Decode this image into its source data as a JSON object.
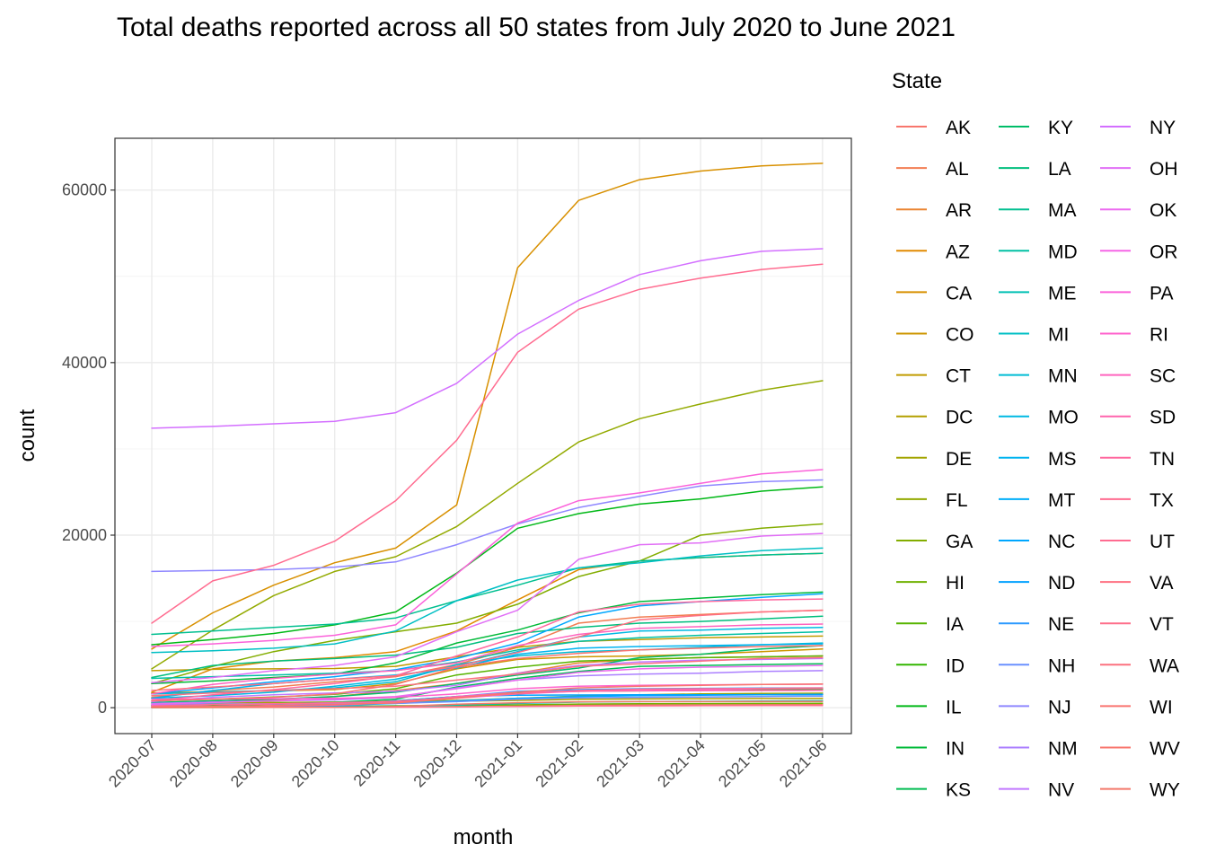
{
  "chart_data": {
    "type": "line",
    "title": "Total deaths reported across all 50 states from July 2020 to June 2021",
    "xlabel": "month",
    "ylabel": "count",
    "legend_title": "State",
    "legend_position": "right",
    "grid": true,
    "ylim": [
      -3000,
      66000
    ],
    "y_ticks": [
      0,
      20000,
      40000,
      60000
    ],
    "x": [
      "2020-07",
      "2020-08",
      "2020-09",
      "2020-10",
      "2020-11",
      "2020-12",
      "2021-01",
      "2021-02",
      "2021-03",
      "2021-04",
      "2021-05",
      "2021-06"
    ],
    "series": [
      {
        "name": "AK",
        "color": "#F8766D",
        "values": [
          30,
          50,
          80,
          100,
          180,
          250,
          300,
          320,
          330,
          340,
          350,
          360
        ]
      },
      {
        "name": "AL",
        "color": "#F27D52",
        "values": [
          1200,
          2000,
          2400,
          3000,
          3600,
          5000,
          7000,
          9800,
          10500,
          10800,
          11100,
          11300
        ]
      },
      {
        "name": "AR",
        "color": "#EA8331",
        "values": [
          300,
          600,
          900,
          1300,
          2000,
          2800,
          4000,
          5200,
          5600,
          5800,
          5900,
          6000
        ]
      },
      {
        "name": "AZ",
        "color": "#E18A00",
        "values": [
          1800,
          4500,
          5400,
          5800,
          6500,
          8900,
          12500,
          16000,
          17000,
          17400,
          17700,
          17900
        ]
      },
      {
        "name": "CA",
        "color": "#D89000",
        "values": [
          6800,
          11000,
          14200,
          16800,
          18500,
          23500,
          51000,
          58800,
          61200,
          62200,
          62800,
          63100
        ]
      },
      {
        "name": "CO",
        "color": "#CD9600",
        "values": [
          1700,
          1850,
          1950,
          2100,
          2800,
          4500,
          5600,
          5900,
          6000,
          6200,
          6500,
          6800
        ]
      },
      {
        "name": "CT",
        "color": "#C09B00",
        "values": [
          4300,
          4450,
          4500,
          4550,
          4800,
          5900,
          7000,
          7700,
          7900,
          8100,
          8200,
          8300
        ]
      },
      {
        "name": "DC",
        "color": "#B3A000",
        "values": [
          550,
          580,
          600,
          630,
          660,
          750,
          850,
          980,
          1020,
          1050,
          1070,
          1080
        ]
      },
      {
        "name": "DE",
        "color": "#A3A500",
        "values": [
          520,
          580,
          600,
          650,
          700,
          850,
          1100,
          1350,
          1500,
          1600,
          1650,
          1680
        ]
      },
      {
        "name": "FL",
        "color": "#93AA00",
        "values": [
          4500,
          9000,
          13000,
          15800,
          17500,
          21000,
          26000,
          30800,
          33500,
          35200,
          36800,
          37900
        ]
      },
      {
        "name": "GA",
        "color": "#83AD00",
        "values": [
          2800,
          4800,
          6500,
          7800,
          8800,
          9800,
          12000,
          15200,
          17000,
          20000,
          20800,
          21300
        ]
      },
      {
        "name": "HI",
        "color": "#6FB100",
        "values": [
          20,
          30,
          60,
          150,
          230,
          270,
          330,
          420,
          460,
          480,
          500,
          510
        ]
      },
      {
        "name": "IA",
        "color": "#57B400",
        "values": [
          800,
          1000,
          1250,
          1550,
          2200,
          3800,
          4700,
          5400,
          5600,
          5800,
          5900,
          6000
        ]
      },
      {
        "name": "ID",
        "color": "#32B600",
        "values": [
          90,
          200,
          400,
          550,
          800,
          1300,
          1700,
          1900,
          1950,
          2000,
          2100,
          2150
        ]
      },
      {
        "name": "IL",
        "color": "#00B816",
        "values": [
          7300,
          7900,
          8600,
          9600,
          11100,
          15600,
          20800,
          22500,
          23600,
          24200,
          25100,
          25600
        ]
      },
      {
        "name": "IN",
        "color": "#00BA38",
        "values": [
          2800,
          3100,
          3500,
          3900,
          5200,
          7500,
          9000,
          11000,
          12300,
          12700,
          13100,
          13400
        ]
      },
      {
        "name": "KS",
        "color": "#00BC52",
        "values": [
          280,
          360,
          460,
          620,
          1000,
          2400,
          3400,
          4200,
          4800,
          4900,
          5000,
          5100
        ]
      },
      {
        "name": "KY",
        "color": "#00BD68",
        "values": [
          600,
          800,
          1000,
          1300,
          1800,
          2800,
          3800,
          4600,
          5800,
          6200,
          6800,
          7200
        ]
      },
      {
        "name": "LA",
        "color": "#00BE7D",
        "values": [
          3500,
          4900,
          5400,
          5700,
          6100,
          7000,
          8600,
          9300,
          9800,
          10000,
          10300,
          10600
        ]
      },
      {
        "name": "MA",
        "color": "#00BF90",
        "values": [
          8500,
          8900,
          9300,
          9700,
          10400,
          12400,
          14200,
          16200,
          17000,
          17400,
          17700,
          17900
        ]
      },
      {
        "name": "MD",
        "color": "#00C0A3",
        "values": [
          3400,
          3600,
          3800,
          4000,
          4300,
          5300,
          6700,
          7700,
          8100,
          8400,
          8600,
          8800
        ]
      },
      {
        "name": "ME",
        "color": "#00C0B4",
        "values": [
          110,
          120,
          130,
          140,
          170,
          300,
          500,
          650,
          700,
          740,
          780,
          810
        ]
      },
      {
        "name": "MI",
        "color": "#00BFC4",
        "values": [
          6400,
          6600,
          6900,
          7400,
          8900,
          12400,
          14800,
          16200,
          16800,
          17600,
          18200,
          18500
        ]
      },
      {
        "name": "MN",
        "color": "#00BCD4",
        "values": [
          1600,
          1800,
          2000,
          2300,
          3000,
          5000,
          6000,
          6500,
          6700,
          7000,
          7300,
          7500
        ]
      },
      {
        "name": "MO",
        "color": "#00B9E3",
        "values": [
          1100,
          1400,
          1800,
          2500,
          3300,
          4800,
          6500,
          8200,
          8900,
          9000,
          9200,
          9300
        ]
      },
      {
        "name": "MS",
        "color": "#00B4F0",
        "values": [
          1100,
          2000,
          2800,
          3300,
          3800,
          4600,
          6200,
          6900,
          7100,
          7200,
          7300,
          7400
        ]
      },
      {
        "name": "MT",
        "color": "#00AEFA",
        "values": [
          30,
          80,
          150,
          250,
          500,
          800,
          1100,
          1300,
          1400,
          1450,
          1500,
          1550
        ]
      },
      {
        "name": "NC",
        "color": "#00A7FF",
        "values": [
          1600,
          2300,
          3000,
          3600,
          4400,
          5700,
          7500,
          10500,
          11800,
          12300,
          12800,
          13200
        ]
      },
      {
        "name": "ND",
        "color": "#00A0FF",
        "values": [
          90,
          150,
          200,
          400,
          800,
          1300,
          1450,
          1480,
          1500,
          1510,
          1520,
          1530
        ]
      },
      {
        "name": "NE",
        "color": "#2C99FF",
        "values": [
          300,
          350,
          400,
          500,
          700,
          1300,
          1900,
          2100,
          2200,
          2250,
          2280,
          2300
        ]
      },
      {
        "name": "NH",
        "color": "#6A90FF",
        "values": [
          380,
          420,
          440,
          460,
          500,
          700,
          1000,
          1150,
          1200,
          1250,
          1300,
          1350
        ]
      },
      {
        "name": "NJ",
        "color": "#8F87FF",
        "values": [
          15800,
          15900,
          16000,
          16300,
          16900,
          18900,
          21300,
          23200,
          24500,
          25700,
          26200,
          26400
        ]
      },
      {
        "name": "NM",
        "color": "#AB7FFF",
        "values": [
          500,
          650,
          800,
          900,
          1200,
          2300,
          3200,
          3700,
          3900,
          4000,
          4200,
          4300
        ]
      },
      {
        "name": "NV",
        "color": "#C177FF",
        "values": [
          700,
          1200,
          1500,
          1700,
          1900,
          2600,
          4000,
          4900,
          5300,
          5500,
          5600,
          5700
        ]
      },
      {
        "name": "NY",
        "color": "#D36FFF",
        "values": [
          32400,
          32600,
          32900,
          33200,
          34200,
          37600,
          43300,
          47200,
          50200,
          51800,
          52900,
          53200
        ]
      },
      {
        "name": "OH",
        "color": "#E16EF6",
        "values": [
          2900,
          3500,
          4300,
          4900,
          5900,
          8800,
          11300,
          17200,
          18900,
          19100,
          19900,
          20200
        ]
      },
      {
        "name": "OK",
        "color": "#EC69EF",
        "values": [
          400,
          600,
          800,
          1000,
          1300,
          2200,
          3200,
          4100,
          4500,
          4700,
          4800,
          4900
        ]
      },
      {
        "name": "OR",
        "color": "#F565E6",
        "values": [
          250,
          350,
          450,
          550,
          700,
          1100,
          1600,
          1900,
          2000,
          2100,
          2200,
          2250
        ]
      },
      {
        "name": "PA",
        "color": "#FB61DA",
        "values": [
          7100,
          7400,
          7800,
          8400,
          9600,
          15500,
          21400,
          24000,
          24900,
          26000,
          27100,
          27600
        ]
      },
      {
        "name": "RI",
        "color": "#FF61CC",
        "values": [
          1000,
          1020,
          1050,
          1100,
          1200,
          1600,
          2200,
          2500,
          2600,
          2650,
          2700,
          2720
        ]
      },
      {
        "name": "SC",
        "color": "#FF63BE",
        "values": [
          1600,
          2700,
          3400,
          3900,
          4300,
          5200,
          7200,
          8500,
          9200,
          9400,
          9600,
          9700
        ]
      },
      {
        "name": "SD",
        "color": "#FF65AE",
        "values": [
          100,
          150,
          200,
          300,
          600,
          1300,
          1800,
          1900,
          1950,
          1980,
          2000,
          2010
        ]
      },
      {
        "name": "TN",
        "color": "#FF689F",
        "values": [
          800,
          1500,
          2100,
          2800,
          3700,
          6000,
          8200,
          11100,
          12000,
          12300,
          12500,
          12600
        ]
      },
      {
        "name": "TX",
        "color": "#FF6C90",
        "values": [
          9800,
          14700,
          16500,
          19300,
          24000,
          31000,
          41200,
          46200,
          48500,
          49800,
          50800,
          51400
        ]
      },
      {
        "name": "UT",
        "color": "#FF6C91",
        "values": [
          200,
          350,
          450,
          580,
          750,
          1200,
          1600,
          2000,
          2150,
          2200,
          2250,
          2300
        ]
      },
      {
        "name": "VA",
        "color": "#FF6F81",
        "values": [
          2000,
          2400,
          2800,
          3300,
          3700,
          4800,
          6400,
          8200,
          10200,
          10700,
          11100,
          11300
        ]
      },
      {
        "name": "VT",
        "color": "#FE6E8A",
        "values": [
          56,
          58,
          58,
          59,
          60,
          80,
          150,
          200,
          220,
          240,
          250,
          256
        ]
      },
      {
        "name": "WA",
        "color": "#FC717F",
        "values": [
          1400,
          1700,
          2000,
          2200,
          2500,
          3200,
          3900,
          4800,
          5100,
          5400,
          5700,
          5800
        ]
      },
      {
        "name": "WI",
        "color": "#F9736F",
        "values": [
          800,
          1000,
          1200,
          1600,
          2700,
          4700,
          5700,
          6300,
          6700,
          6900,
          7100,
          7200
        ]
      },
      {
        "name": "WV",
        "color": "#F8766D",
        "values": [
          100,
          150,
          250,
          380,
          550,
          1100,
          1800,
          2300,
          2500,
          2600,
          2700,
          2750
        ]
      },
      {
        "name": "WY",
        "color": "#F3786A",
        "values": [
          20,
          30,
          50,
          60,
          150,
          400,
          580,
          680,
          700,
          710,
          720,
          730
        ]
      }
    ]
  }
}
